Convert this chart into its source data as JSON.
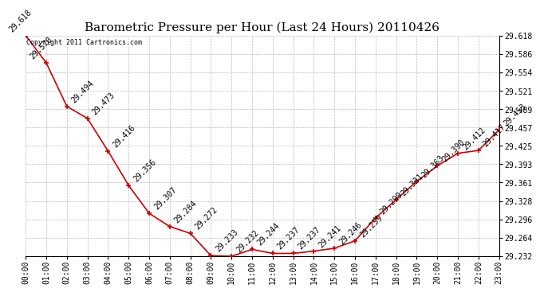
{
  "title": "Barometric Pressure per Hour (Last 24 Hours) 20110426",
  "copyright": "Copyright 2011 Cartronics.com",
  "hours": [
    "00:00",
    "01:00",
    "02:00",
    "03:00",
    "04:00",
    "05:00",
    "06:00",
    "07:00",
    "08:00",
    "09:00",
    "10:00",
    "11:00",
    "12:00",
    "13:00",
    "14:00",
    "15:00",
    "16:00",
    "17:00",
    "18:00",
    "19:00",
    "20:00",
    "21:00",
    "22:00",
    "23:00"
  ],
  "values": [
    29.618,
    29.57,
    29.494,
    29.473,
    29.416,
    29.356,
    29.307,
    29.284,
    29.272,
    29.233,
    29.232,
    29.244,
    29.237,
    29.237,
    29.241,
    29.246,
    29.259,
    29.299,
    29.331,
    29.363,
    29.39,
    29.412,
    29.417,
    29.453
  ],
  "ylim_min": 29.232,
  "ylim_max": 29.618,
  "y_ticks": [
    29.232,
    29.264,
    29.296,
    29.328,
    29.361,
    29.393,
    29.425,
    29.457,
    29.489,
    29.521,
    29.554,
    29.586,
    29.618
  ],
  "line_color": "#cc0000",
  "marker_color": "#cc0000",
  "bg_color": "#ffffff",
  "grid_color": "#bbbbbb",
  "title_fontsize": 11,
  "tick_fontsize": 7,
  "annotation_fontsize": 7,
  "copyright_fontsize": 6,
  "annotations": [
    [
      0,
      29.618,
      "29.618",
      -16,
      2
    ],
    [
      1,
      29.57,
      "29.570",
      -16,
      2
    ],
    [
      2,
      29.494,
      "29.494",
      3,
      2
    ],
    [
      3,
      29.473,
      "29.473",
      3,
      2
    ],
    [
      4,
      29.416,
      "29.416",
      3,
      2
    ],
    [
      5,
      29.356,
      "29.356",
      3,
      2
    ],
    [
      6,
      29.307,
      "29.307",
      3,
      2
    ],
    [
      7,
      29.284,
      "29.284",
      3,
      2
    ],
    [
      8,
      29.272,
      "29.272",
      3,
      2
    ],
    [
      9,
      29.233,
      "29.233",
      3,
      2
    ],
    [
      10,
      29.232,
      "29.232",
      3,
      2
    ],
    [
      11,
      29.244,
      "29.244",
      3,
      2
    ],
    [
      12,
      29.237,
      "29.237",
      3,
      2
    ],
    [
      13,
      29.237,
      "29.237",
      3,
      2
    ],
    [
      14,
      29.241,
      "29.241",
      3,
      2
    ],
    [
      15,
      29.246,
      "29.246",
      3,
      2
    ],
    [
      16,
      29.259,
      "29.259",
      3,
      2
    ],
    [
      17,
      29.299,
      "29.299",
      3,
      2
    ],
    [
      18,
      29.331,
      "29.331",
      3,
      2
    ],
    [
      19,
      29.363,
      "29.363",
      3,
      2
    ],
    [
      20,
      29.39,
      "29.390",
      3,
      2
    ],
    [
      21,
      29.412,
      "29.412",
      3,
      2
    ],
    [
      22,
      29.417,
      "29.417",
      3,
      2
    ],
    [
      23,
      29.453,
      "29.453",
      3,
      2
    ]
  ]
}
